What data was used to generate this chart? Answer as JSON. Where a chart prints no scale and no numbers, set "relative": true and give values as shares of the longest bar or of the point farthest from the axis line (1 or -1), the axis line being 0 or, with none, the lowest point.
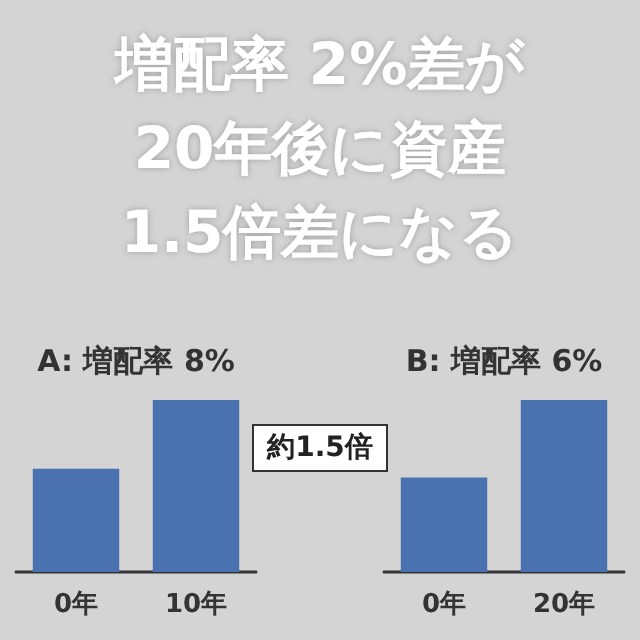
{
  "chart_data": [
    {
      "type": "other",
      "title": "増配率 2%差が20年後に資産1.5倍差になる",
      "annotations": [
        "約1.5倍"
      ]
    },
    {
      "type": "bar",
      "title": "A: 増配率 8%",
      "categories": [
        "0年",
        "10年"
      ],
      "values": [
        0.6,
        1
      ],
      "color": "#4a72b0",
      "relative": true
    },
    {
      "type": "bar",
      "title": "B: 増配率 6%",
      "categories": [
        "0年",
        "20年"
      ],
      "values": [
        0.55,
        1
      ],
      "color": "#4a72b0",
      "relative": true
    }
  ]
}
